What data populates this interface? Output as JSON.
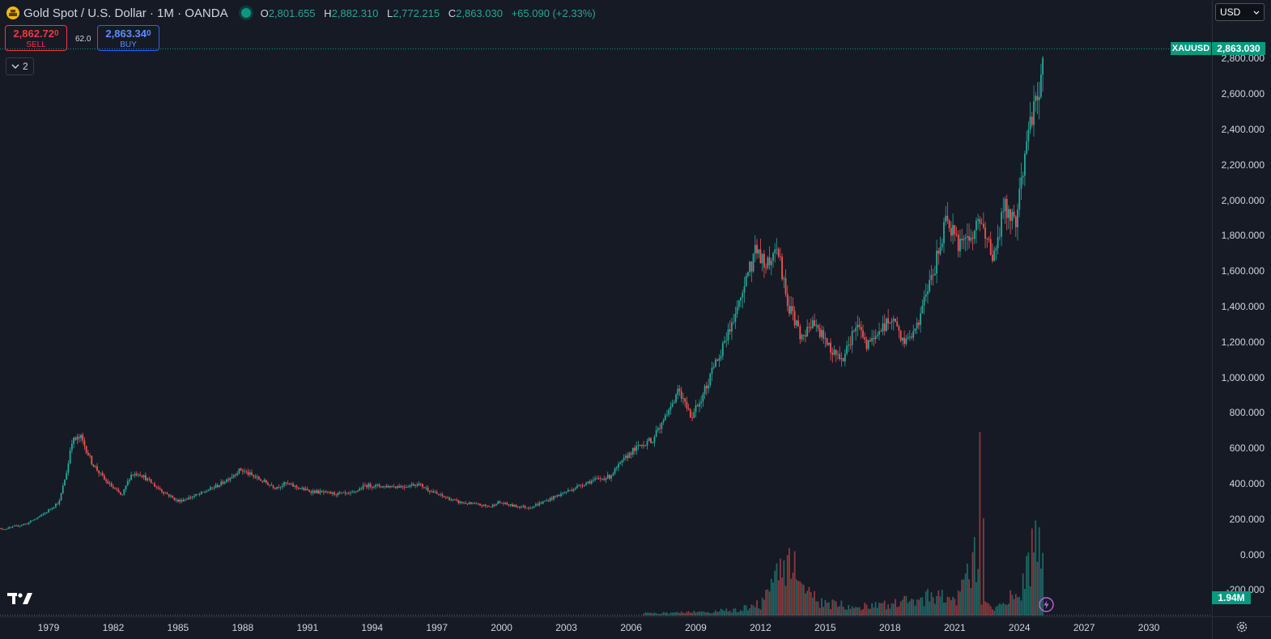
{
  "header": {
    "title": "Gold Spot / U.S. Dollar · 1M · OANDA",
    "ohlc": [
      {
        "key": "O",
        "value": "2,801.655"
      },
      {
        "key": "H",
        "value": "2,882.310"
      },
      {
        "key": "L",
        "value": "2,772.215"
      },
      {
        "key": "C",
        "value": "2,863.030"
      }
    ],
    "change": "+65.090 (+2.33%)"
  },
  "trade": {
    "sell_price": "2,862.72",
    "sell_price_small": "0",
    "sell_label": "SELL",
    "spread": "62.0",
    "buy_price": "2,863.34",
    "buy_price_small": "0",
    "buy_label": "BUY"
  },
  "indicators_toggle": {
    "count": "2"
  },
  "currency": {
    "selected": "USD"
  },
  "price_axis": {
    "labels": [
      "2,800.000",
      "2,600.000",
      "2,400.000",
      "2,200.000",
      "2,000.000",
      "1,800.000",
      "1,600.000",
      "1,400.000",
      "1,200.000",
      "1,000.000",
      "800.000",
      "600.000",
      "400.000",
      "200.000",
      "0.000",
      "-200.000"
    ],
    "symbol_tag": "XAUUSD",
    "last_price": "2,863.030",
    "volume_tag": "1.94M"
  },
  "time_axis": {
    "labels": [
      "1979",
      "1982",
      "1985",
      "1988",
      "1991",
      "1994",
      "1997",
      "2000",
      "2003",
      "2006",
      "2009",
      "2012",
      "2015",
      "2018",
      "2021",
      "2024",
      "2027",
      "2030"
    ]
  },
  "colors": {
    "up": "#26a69a",
    "down": "#ef5350",
    "background": "#161a25",
    "accent": "#089981"
  },
  "icons": {
    "symbol": "gold-coin-icon",
    "logo": "tradingview-logo",
    "flash": "lightning-icon",
    "settings": "gear-icon"
  },
  "chart_data": {
    "type": "candlestick",
    "interval": "1M",
    "ylim": [
      -250,
      2950
    ],
    "x_range": [
      1976.5,
      2031.5
    ],
    "anchors": [
      [
        1977.0,
        145
      ],
      [
        1978.0,
        175
      ],
      [
        1978.8,
        230
      ],
      [
        1979.5,
        300
      ],
      [
        1979.9,
        500
      ],
      [
        1980.05,
        640
      ],
      [
        1980.5,
        660
      ],
      [
        1981.0,
        520
      ],
      [
        1981.6,
        420
      ],
      [
        1982.4,
        330
      ],
      [
        1982.8,
        450
      ],
      [
        1983.2,
        460
      ],
      [
        1984.0,
        380
      ],
      [
        1985.0,
        300
      ],
      [
        1986.0,
        340
      ],
      [
        1987.0,
        400
      ],
      [
        1987.9,
        480
      ],
      [
        1988.5,
        440
      ],
      [
        1989.5,
        380
      ],
      [
        1990.0,
        400
      ],
      [
        1991.0,
        360
      ],
      [
        1992.0,
        345
      ],
      [
        1993.0,
        340
      ],
      [
        1993.7,
        390
      ],
      [
        1994.5,
        385
      ],
      [
        1995.5,
        385
      ],
      [
        1996.1,
        400
      ],
      [
        1997.0,
        340
      ],
      [
        1998.0,
        295
      ],
      [
        1999.5,
        270
      ],
      [
        1999.8,
        295
      ],
      [
        2000.5,
        275
      ],
      [
        2001.3,
        265
      ],
      [
        2002.0,
        300
      ],
      [
        2003.0,
        355
      ],
      [
        2004.0,
        410
      ],
      [
        2005.0,
        440
      ],
      [
        2006.0,
        580
      ],
      [
        2006.5,
        620
      ],
      [
        2007.0,
        650
      ],
      [
        2007.9,
        830
      ],
      [
        2008.2,
        920
      ],
      [
        2008.8,
        770
      ],
      [
        2009.5,
        950
      ],
      [
        2010.0,
        1100
      ],
      [
        2010.9,
        1380
      ],
      [
        2011.6,
        1650
      ],
      [
        2011.8,
        1750
      ],
      [
        2012.2,
        1620
      ],
      [
        2012.8,
        1720
      ],
      [
        2013.3,
        1400
      ],
      [
        2013.9,
        1230
      ],
      [
        2014.5,
        1300
      ],
      [
        2015.0,
        1200
      ],
      [
        2015.8,
        1080
      ],
      [
        2016.5,
        1320
      ],
      [
        2016.9,
        1170
      ],
      [
        2017.6,
        1270
      ],
      [
        2018.0,
        1330
      ],
      [
        2018.7,
        1200
      ],
      [
        2019.3,
        1290
      ],
      [
        2019.7,
        1490
      ],
      [
        2020.0,
        1580
      ],
      [
        2020.6,
        1900
      ],
      [
        2021.2,
        1730
      ],
      [
        2021.8,
        1790
      ],
      [
        2022.2,
        1900
      ],
      [
        2022.8,
        1650
      ],
      [
        2023.3,
        1980
      ],
      [
        2023.8,
        1850
      ],
      [
        2024.0,
        2030
      ],
      [
        2024.3,
        2330
      ],
      [
        2024.9,
        2620
      ],
      [
        2025.05,
        2800
      ],
      [
        2025.1,
        2863
      ]
    ],
    "volume_anchors": [
      [
        2007.0,
        0.1
      ],
      [
        2009.0,
        0.15
      ],
      [
        2011.0,
        0.25
      ],
      [
        2012.0,
        0.5
      ],
      [
        2013.3,
        2.8
      ],
      [
        2013.9,
        1.0
      ],
      [
        2015.0,
        0.5
      ],
      [
        2018.0,
        0.45
      ],
      [
        2020.0,
        0.9
      ],
      [
        2021.0,
        0.6
      ],
      [
        2022.0,
        2.5
      ],
      [
        2022.3,
        0.5
      ],
      [
        2023.0,
        0.4
      ],
      [
        2024.0,
        1.0
      ],
      [
        2024.9,
        3.5
      ],
      [
        2025.1,
        1.94
      ]
    ],
    "volume_spikes": [
      [
        2022.15,
        8.1
      ],
      [
        2022.3,
        4.3
      ],
      [
        2024.75,
        4.2
      ],
      [
        2024.9,
        3.9
      ]
    ],
    "volume_max_label": "1.94M"
  }
}
